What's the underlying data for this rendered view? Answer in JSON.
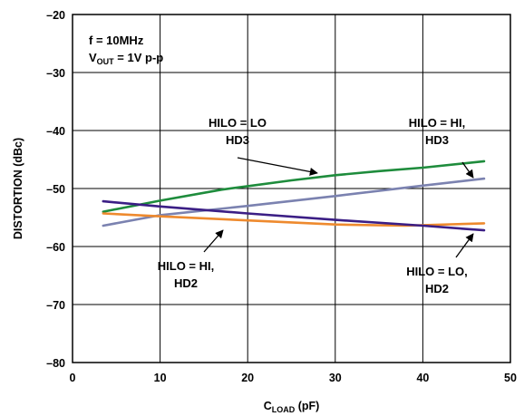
{
  "chart_data": {
    "type": "line",
    "xlabel": {
      "main": "C",
      "sub": "LOAD",
      "rest": " (pF)"
    },
    "ylabel": "DISTORTION (dBc)",
    "xlim": [
      0,
      50
    ],
    "ylim": [
      -80,
      -20
    ],
    "x_ticks": [
      0,
      10,
      20,
      30,
      40,
      50
    ],
    "y_ticks": [
      -20,
      -30,
      -40,
      -50,
      -60,
      -70,
      -80
    ],
    "x_tick_labels": [
      "0",
      "10",
      "20",
      "30",
      "40",
      "50"
    ],
    "y_tick_labels": [
      "–20",
      "–30",
      "–40",
      "–50",
      "–60",
      "–70",
      "–80"
    ],
    "grid": true,
    "conditions": {
      "line1": "f = 10MHz",
      "line2": {
        "main": "V",
        "sub": "OUT",
        "rest": " = 1V p-p"
      }
    },
    "series": [
      {
        "name": "HILO = LO HD3",
        "color": "#1e8c3c",
        "x": [
          3.5,
          10,
          17,
          20,
          25,
          30,
          35,
          40,
          47
        ],
        "y": [
          -54,
          -52.1,
          -50.2,
          -49.6,
          -48.6,
          -47.7,
          -47,
          -46.4,
          -45.3
        ]
      },
      {
        "name": "HILO = HI, HD3",
        "color": "#7b82b0",
        "x": [
          3.5,
          10,
          20,
          30,
          40,
          47
        ],
        "y": [
          -56.4,
          -54.6,
          -53,
          -51.3,
          -49.5,
          -48.3
        ]
      },
      {
        "name": "HILO = HI, HD2",
        "color": "#ee8a2e",
        "x": [
          3.5,
          10,
          20,
          30,
          38,
          47
        ],
        "y": [
          -54.3,
          -54.8,
          -55.5,
          -56.2,
          -56.4,
          -56
        ]
      },
      {
        "name": "HILO = LO, HD2",
        "color": "#3b1e85",
        "x": [
          3.5,
          10,
          20,
          30,
          40,
          47
        ],
        "y": [
          -52.2,
          -53.1,
          -54.3,
          -55.4,
          -56.4,
          -57.2
        ]
      }
    ],
    "annotations": [
      {
        "lines": [
          "HILO = LO",
          "HD3"
        ]
      },
      {
        "lines": [
          "HILO = HI,",
          "HD3"
        ]
      },
      {
        "lines": [
          "HILO = HI,",
          "HD2"
        ]
      },
      {
        "lines": [
          "HILO = LO,",
          "HD2"
        ]
      }
    ]
  }
}
